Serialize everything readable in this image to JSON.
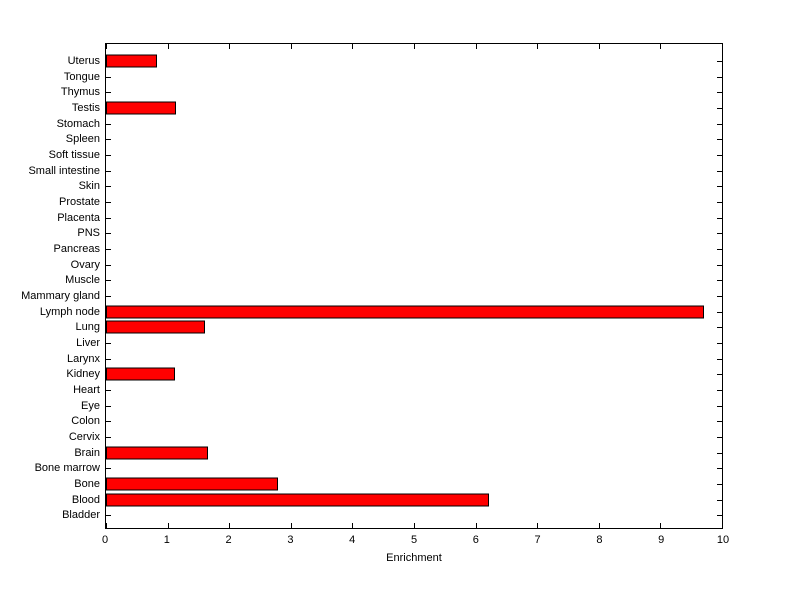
{
  "figure": {
    "background_color": "#ffffff",
    "axis_color": "#000000",
    "text_color": "#000000"
  },
  "chart_data": {
    "type": "bar",
    "orientation": "horizontal",
    "title": "",
    "xlabel": "Enrichment",
    "ylabel": "",
    "xlim": [
      0,
      10
    ],
    "x_ticks": [
      0,
      1,
      2,
      3,
      4,
      5,
      6,
      7,
      8,
      9,
      10
    ],
    "grid": false,
    "legend": false,
    "bar_color": "#ff0000",
    "bar_edge_color": "#000000",
    "categories": [
      "Uterus",
      "Tongue",
      "Thymus",
      "Testis",
      "Stomach",
      "Spleen",
      "Soft tissue",
      "Small intestine",
      "Skin",
      "Prostate",
      "Placenta",
      "PNS",
      "Pancreas",
      "Ovary",
      "Muscle",
      "Mammary gland",
      "Lymph node",
      "Lung",
      "Liver",
      "Larynx",
      "Kidney",
      "Heart",
      "Eye",
      "Colon",
      "Cervix",
      "Brain",
      "Bone marrow",
      "Bone",
      "Blood",
      "Bladder"
    ],
    "values": [
      0.83,
      0,
      0,
      1.13,
      0,
      0,
      0,
      0,
      0,
      0,
      0,
      0,
      0,
      0,
      0,
      0,
      9.7,
      1.6,
      0,
      0,
      1.12,
      0,
      0,
      0,
      0,
      1.65,
      0,
      2.8,
      6.22,
      0
    ]
  }
}
